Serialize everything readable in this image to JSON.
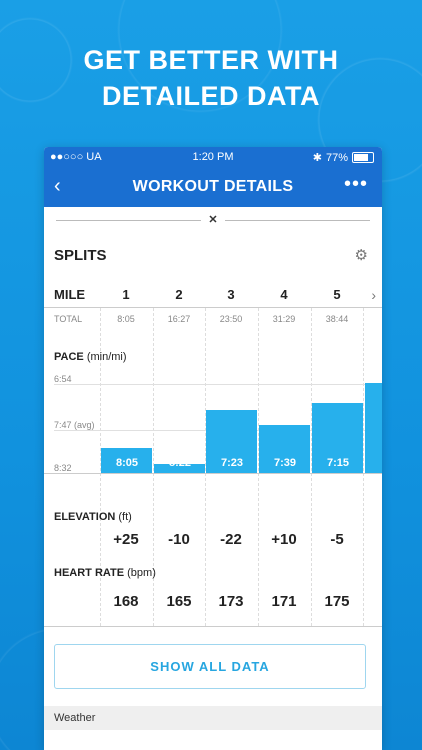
{
  "headline": {
    "line1": "GET BETTER WITH",
    "line2": "DETAILED DATA"
  },
  "status": {
    "carrier": "●●○○○ UA",
    "wifi": "wifi-icon",
    "time": "1:20 PM",
    "battery": "77%"
  },
  "nav": {
    "title": "WORKOUT DETAILS",
    "back": "‹",
    "more": "•••"
  },
  "splits": {
    "title": "SPLITS",
    "mile_label": "MILE",
    "total_label": "TOTAL",
    "pace_label": "PACE",
    "pace_unit": "(min/mi)",
    "axis": {
      "top": "6:54",
      "avg": "7:47 (avg)",
      "bottom": "8:32"
    },
    "elevation_label": "ELEVATION",
    "elevation_unit": "(ft)",
    "heart_label": "HEART RATE",
    "heart_unit": "(bpm)",
    "miles": [
      {
        "num": "1",
        "total": "8:05",
        "pace": "8:05",
        "pace_sec": 485,
        "elev": "+25",
        "hr": "168"
      },
      {
        "num": "2",
        "total": "16:27",
        "pace": "8:22",
        "pace_sec": 502,
        "elev": "-10",
        "hr": "165"
      },
      {
        "num": "3",
        "total": "23:50",
        "pace": "7:23",
        "pace_sec": 443,
        "elev": "-22",
        "hr": "173"
      },
      {
        "num": "4",
        "total": "31:29",
        "pace": "7:39",
        "pace_sec": 459,
        "elev": "+10",
        "hr": "171"
      },
      {
        "num": "5",
        "total": "38:44",
        "pace": "7:15",
        "pace_sec": 435,
        "elev": "-5",
        "hr": "175"
      }
    ]
  },
  "show_all": "SHOW ALL DATA",
  "weather": "Weather"
}
